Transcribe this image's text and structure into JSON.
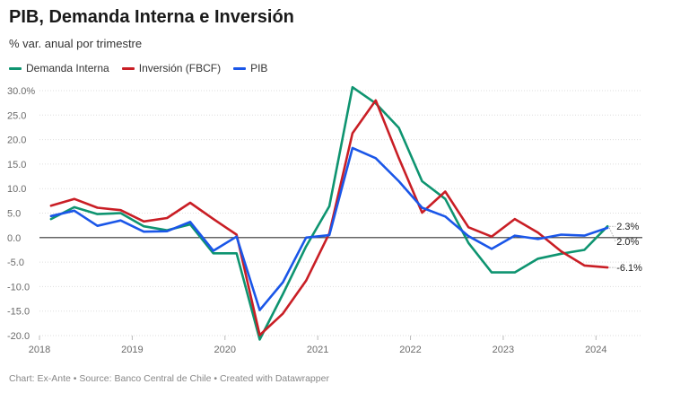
{
  "header": {
    "title": "PIB, Demanda Interna e Inversión",
    "subtitle": "% var. anual por trimestre"
  },
  "footer": {
    "text": "Chart: Ex-Ante • Source: Banco Central de Chile • Created with Datawrapper"
  },
  "colors": {
    "demanda": "#0e9470",
    "inversion": "#c91e25",
    "pib": "#1a56e8",
    "grid": "#dddddd",
    "zero": "#333333"
  },
  "chart_data": {
    "type": "line",
    "title": "PIB, Demanda Interna e Inversión",
    "ylabel": "",
    "xlabel": "",
    "ylim": [
      -20,
      30
    ],
    "yticks": [
      {
        "value": 30,
        "label": "30.0%"
      },
      {
        "value": 25,
        "label": "25.0"
      },
      {
        "value": 20,
        "label": "20.0"
      },
      {
        "value": 15,
        "label": "15.0"
      },
      {
        "value": 10,
        "label": "10.0"
      },
      {
        "value": 5,
        "label": "5.0"
      },
      {
        "value": 0,
        "label": "0.0"
      },
      {
        "value": -5,
        "label": "-5.0"
      },
      {
        "value": -10,
        "label": "-10.0"
      },
      {
        "value": -15,
        "label": "-15.0"
      },
      {
        "value": -20,
        "label": "-20.0"
      }
    ],
    "xticks": [
      {
        "value": 2018.0,
        "label": "2018"
      },
      {
        "value": 2019.0,
        "label": "2019"
      },
      {
        "value": 2020.0,
        "label": "2020"
      },
      {
        "value": 2021.0,
        "label": "2021"
      },
      {
        "value": 2022.0,
        "label": "2022"
      },
      {
        "value": 2023.0,
        "label": "2023"
      },
      {
        "value": 2024.0,
        "label": "2024"
      }
    ],
    "xlim": [
      2018.0,
      2024.5
    ],
    "x": [
      2018.125,
      2018.375,
      2018.625,
      2018.875,
      2019.125,
      2019.375,
      2019.625,
      2019.875,
      2020.125,
      2020.375,
      2020.625,
      2020.875,
      2021.125,
      2021.375,
      2021.625,
      2021.875,
      2022.125,
      2022.375,
      2022.625,
      2022.875,
      2023.125,
      2023.375,
      2023.625,
      2023.875,
      2024.125
    ],
    "legend_position": "top-left",
    "series": [
      {
        "key": "demanda",
        "name": "Demanda Interna",
        "color": "#0e9470",
        "end_label": "2.3%",
        "values": [
          3.8,
          6.2,
          4.8,
          5.0,
          2.3,
          1.5,
          2.7,
          -3.2,
          -3.2,
          -20.8,
          -11.5,
          -1.8,
          6.4,
          30.7,
          27.4,
          22.4,
          11.5,
          7.9,
          -1.1,
          -7.1,
          -7.1,
          -4.3,
          -3.3,
          -2.5,
          2.3
        ]
      },
      {
        "key": "inversion",
        "name": "Inversión (FBCF)",
        "color": "#c91e25",
        "end_label": "-6.1%",
        "values": [
          6.5,
          7.9,
          6.1,
          5.6,
          3.3,
          4.0,
          7.1,
          3.8,
          0.6,
          -19.9,
          -15.5,
          -8.8,
          0.9,
          21.3,
          28.0,
          16.2,
          5.1,
          9.4,
          2.1,
          0.2,
          3.8,
          1.0,
          -2.8,
          -5.7,
          -6.1
        ]
      },
      {
        "key": "pib",
        "name": "PIB",
        "color": "#1a56e8",
        "end_label": "2.0%",
        "values": [
          4.4,
          5.5,
          2.4,
          3.5,
          1.2,
          1.3,
          3.2,
          -2.7,
          0.2,
          -14.8,
          -9.1,
          0.0,
          0.5,
          18.3,
          16.2,
          11.5,
          6.1,
          4.3,
          0.3,
          -2.3,
          0.4,
          -0.3,
          0.6,
          0.4,
          2.0
        ]
      }
    ]
  }
}
